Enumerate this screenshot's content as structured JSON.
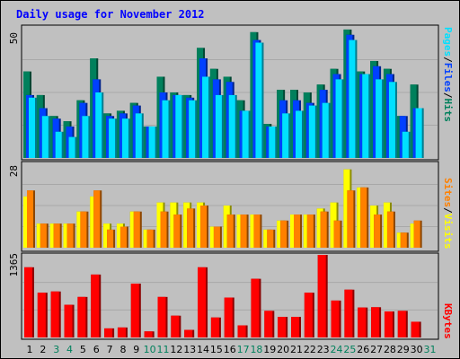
{
  "title": "Daily usage for November 2012",
  "colors": {
    "background": "#c0c0c0",
    "title": "#0000ff",
    "pages": "#00e0ff",
    "files": "#0040ff",
    "hits": "#00805c",
    "sites": "#ff8000",
    "visits": "#ffff00",
    "kbytes": "#ff0000",
    "weekend_day_label": "#00805c",
    "weekday_label": "#000000"
  },
  "chart_data": [
    {
      "type": "bar",
      "panel": "hits-files-pages",
      "ylabel_max": "50",
      "ylim": [
        0,
        50
      ],
      "legend": [
        "Pages",
        "/",
        "Files",
        "/",
        "Hits"
      ],
      "categories": [
        "1",
        "2",
        "3",
        "4",
        "5",
        "6",
        "7",
        "8",
        "9",
        "10",
        "11",
        "12",
        "13",
        "14",
        "15",
        "16",
        "17",
        "18",
        "19",
        "20",
        "21",
        "22",
        "23",
        "24",
        "25",
        "26",
        "27",
        "28",
        "29",
        "30",
        "31"
      ],
      "series": [
        {
          "name": "Hits",
          "values": [
            33,
            24,
            16,
            14,
            22,
            38,
            17,
            18,
            21,
            12,
            31,
            25,
            24,
            42,
            34,
            31,
            22,
            48,
            13,
            26,
            26,
            25,
            28,
            34,
            49,
            33,
            37,
            34,
            16,
            28,
            0
          ]
        },
        {
          "name": "Files",
          "values": [
            24,
            19,
            15,
            12,
            21,
            30,
            16,
            17,
            20,
            12,
            25,
            24,
            23,
            38,
            30,
            29,
            18,
            45,
            12,
            22,
            22,
            21,
            26,
            32,
            47,
            32,
            35,
            32,
            16,
            19,
            0
          ]
        },
        {
          "name": "Pages",
          "values": [
            23,
            16,
            10,
            8,
            16,
            25,
            15,
            15,
            17,
            12,
            22,
            24,
            22,
            31,
            24,
            24,
            18,
            44,
            12,
            17,
            18,
            20,
            21,
            30,
            45,
            32,
            30,
            29,
            10,
            19,
            0
          ]
        }
      ]
    },
    {
      "type": "bar",
      "panel": "visits-sites",
      "ylabel_max": "28",
      "ylim": [
        0,
        28
      ],
      "legend": [
        "Sites",
        "/",
        "Visits"
      ],
      "categories": [
        "1",
        "2",
        "3",
        "4",
        "5",
        "6",
        "7",
        "8",
        "9",
        "10",
        "11",
        "12",
        "13",
        "14",
        "15",
        "16",
        "17",
        "18",
        "19",
        "20",
        "21",
        "22",
        "23",
        "24",
        "25",
        "26",
        "27",
        "28",
        "29",
        "30",
        "31"
      ],
      "series": [
        {
          "name": "Visits",
          "values": [
            17,
            8,
            8,
            8,
            12,
            17,
            8,
            8,
            12,
            6,
            15,
            15,
            15,
            15,
            7,
            14,
            11,
            11,
            6,
            9,
            11,
            11,
            13,
            15,
            26,
            20,
            14,
            15,
            5,
            8,
            0
          ]
        },
        {
          "name": "Sites",
          "values": [
            19,
            8,
            8,
            8,
            12,
            19,
            6,
            7,
            12,
            6,
            12,
            11,
            13,
            14,
            7,
            11,
            11,
            11,
            6,
            9,
            11,
            11,
            12,
            9,
            19,
            20,
            11,
            12,
            5,
            9,
            0
          ]
        }
      ]
    },
    {
      "type": "bar",
      "panel": "kbytes",
      "ylabel_max": "1365",
      "ylim": [
        0,
        1365
      ],
      "legend": [
        "KBytes"
      ],
      "categories": [
        "1",
        "2",
        "3",
        "4",
        "5",
        "6",
        "7",
        "8",
        "9",
        "10",
        "11",
        "12",
        "13",
        "14",
        "15",
        "16",
        "17",
        "18",
        "19",
        "20",
        "21",
        "22",
        "23",
        "24",
        "25",
        "26",
        "27",
        "28",
        "29",
        "30",
        "31"
      ],
      "series": [
        {
          "name": "KBytes",
          "values": [
            1160,
            740,
            760,
            540,
            670,
            1040,
            150,
            165,
            890,
            100,
            670,
            360,
            125,
            1160,
            330,
            660,
            200,
            970,
            440,
            340,
            340,
            740,
            1365,
            610,
            790,
            495,
            500,
            430,
            440,
            260,
            0
          ]
        }
      ]
    }
  ],
  "x_axis": {
    "labels": [
      "1",
      "2",
      "3",
      "4",
      "5",
      "6",
      "7",
      "8",
      "9",
      "10",
      "11",
      "12",
      "13",
      "14",
      "15",
      "16",
      "17",
      "18",
      "19",
      "20",
      "21",
      "22",
      "23",
      "24",
      "25",
      "26",
      "27",
      "28",
      "29",
      "30",
      "31"
    ],
    "weekend": [
      3,
      4,
      10,
      11,
      17,
      18,
      24,
      25,
      31
    ]
  }
}
